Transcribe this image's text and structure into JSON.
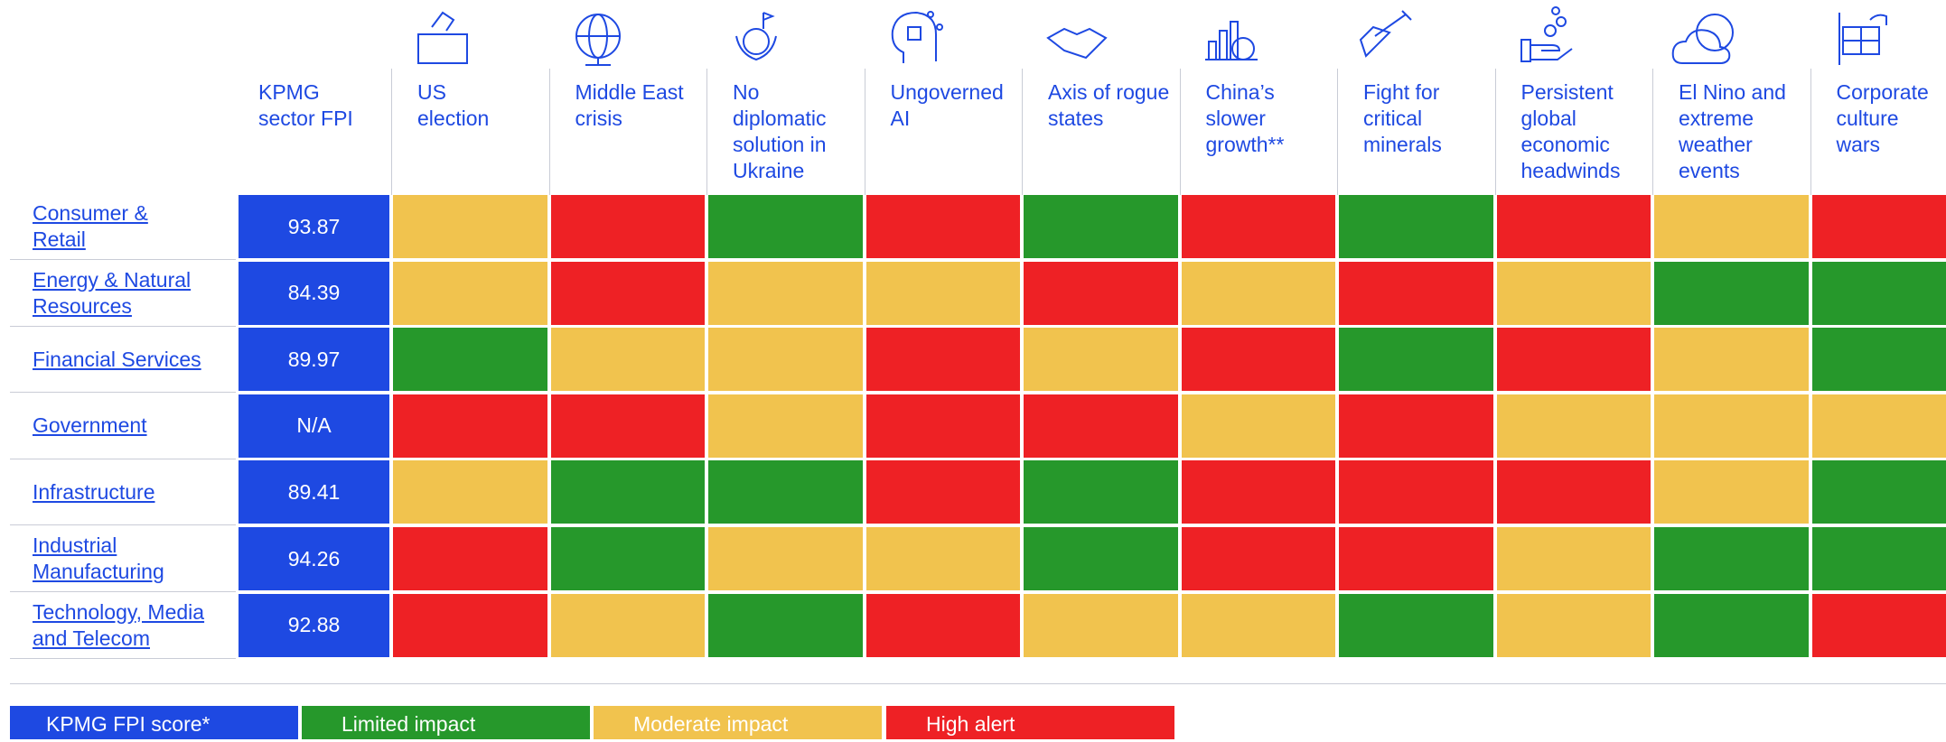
{
  "fpi_header": "KPMG\nsector FPI",
  "columns": [
    "US\nelection",
    "Middle East\ncrisis",
    "No\ndiplomatic\nsolution in\nUkraine",
    "Ungoverned\nAI",
    "Axis of rogue\nstates",
    "China’s\nslower\ngrowth**",
    "Fight for\ncritical\nminerals",
    "Persistent\nglobal\neconomic\nheadwinds",
    "El Nino and\nextreme\nweather\nevents",
    "Corporate\nculture wars"
  ],
  "legend": [
    {
      "label": "KPMG FPI score*",
      "color": "#1e49e2"
    },
    {
      "label": "Limited impact",
      "color": "#26982b"
    },
    {
      "label": "Moderate impact",
      "color": "#f1c34e"
    },
    {
      "label": "High alert",
      "color": "#ee2125"
    }
  ],
  "rows": [
    {
      "label": "Consumer &\nRetail",
      "fpi": 93.87,
      "ratings": [
        2,
        3,
        1,
        3,
        1,
        3,
        1,
        3,
        2,
        3
      ]
    },
    {
      "label": "Energy & Natural\nResources",
      "fpi": 84.39,
      "ratings": [
        2,
        3,
        2,
        2,
        3,
        2,
        3,
        2,
        1,
        1
      ]
    },
    {
      "label": "Financial Services",
      "fpi": 89.97,
      "ratings": [
        1,
        2,
        2,
        3,
        2,
        3,
        1,
        3,
        2,
        1
      ]
    },
    {
      "label": "Government",
      "fpi": "N/A",
      "ratings": [
        3,
        3,
        2,
        3,
        3,
        2,
        3,
        2,
        2,
        2
      ]
    },
    {
      "label": "Infrastructure",
      "fpi": 89.41,
      "ratings": [
        2,
        1,
        1,
        3,
        1,
        3,
        3,
        3,
        2,
        1
      ]
    },
    {
      "label": "Industrial\nManufacturing",
      "fpi": 94.26,
      "ratings": [
        3,
        1,
        2,
        2,
        1,
        3,
        3,
        2,
        1,
        1
      ]
    },
    {
      "label": "Technology, Media\nand Telecom",
      "fpi": 92.88,
      "ratings": [
        3,
        2,
        1,
        3,
        2,
        2,
        1,
        2,
        1,
        3
      ]
    }
  ]
}
